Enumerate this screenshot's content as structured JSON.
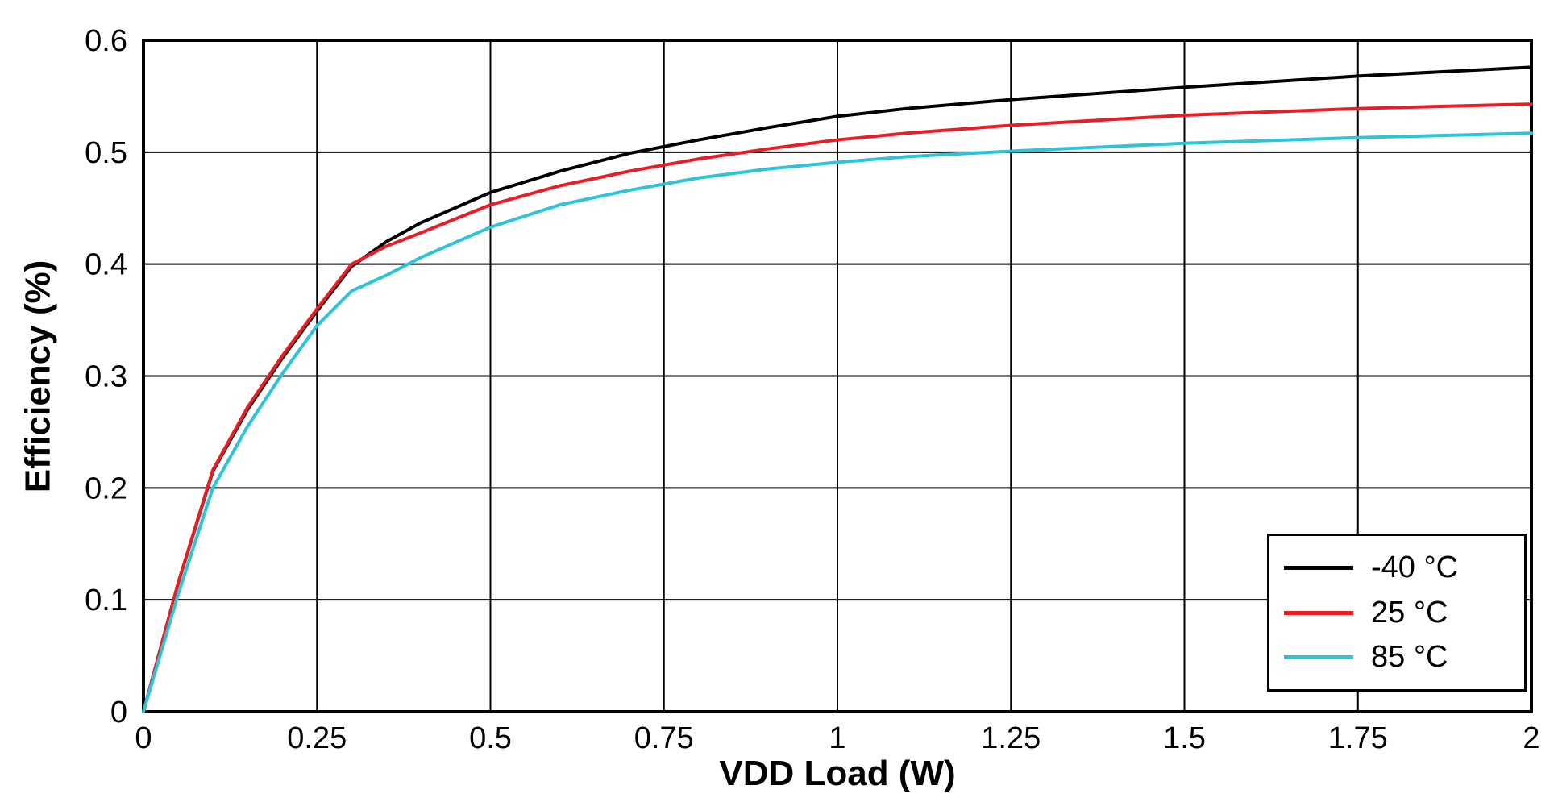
{
  "chart_data": {
    "type": "line",
    "title": "",
    "xlabel": "VDD Load (W)",
    "ylabel": "Efficiency (%)",
    "xlim": [
      0,
      2
    ],
    "ylim": [
      0,
      0.6
    ],
    "grid": true,
    "legend_position": "bottom-right",
    "x_ticks": [
      0,
      0.25,
      0.5,
      0.75,
      1,
      1.25,
      1.5,
      1.75,
      2
    ],
    "x_tick_labels": [
      "0",
      "0.25",
      "0.5",
      "0.75",
      "1",
      "1.25",
      "1.5",
      "1.75",
      "2"
    ],
    "y_ticks": [
      0,
      0.1,
      0.2,
      0.3,
      0.4,
      0.5,
      0.6
    ],
    "y_tick_labels": [
      "0",
      "0.1",
      "0.2",
      "0.3",
      "0.4",
      "0.5",
      "0.6"
    ],
    "x": [
      0,
      0.05,
      0.1,
      0.15,
      0.2,
      0.25,
      0.3,
      0.35,
      0.4,
      0.5,
      0.6,
      0.7,
      0.8,
      0.9,
      1.0,
      1.1,
      1.25,
      1.5,
      1.75,
      2.0
    ],
    "series": [
      {
        "name": "-40 °C",
        "color": "#000000",
        "values": [
          0,
          0.115,
          0.215,
          0.27,
          0.316,
          0.358,
          0.398,
          0.42,
          0.437,
          0.464,
          0.483,
          0.499,
          0.511,
          0.522,
          0.532,
          0.539,
          0.547,
          0.558,
          0.568,
          0.576
        ]
      },
      {
        "name": "25 °C",
        "color": "#ec1c24",
        "values": [
          0,
          0.115,
          0.216,
          0.272,
          0.318,
          0.36,
          0.4,
          0.416,
          0.428,
          0.453,
          0.47,
          0.483,
          0.494,
          0.503,
          0.511,
          0.517,
          0.524,
          0.533,
          0.539,
          0.543
        ]
      },
      {
        "name": "85 °C",
        "color": "#2bc4d9",
        "values": [
          0,
          0.105,
          0.2,
          0.255,
          0.302,
          0.345,
          0.376,
          0.39,
          0.406,
          0.433,
          0.453,
          0.466,
          0.477,
          0.485,
          0.491,
          0.496,
          0.501,
          0.508,
          0.513,
          0.517
        ]
      }
    ]
  }
}
